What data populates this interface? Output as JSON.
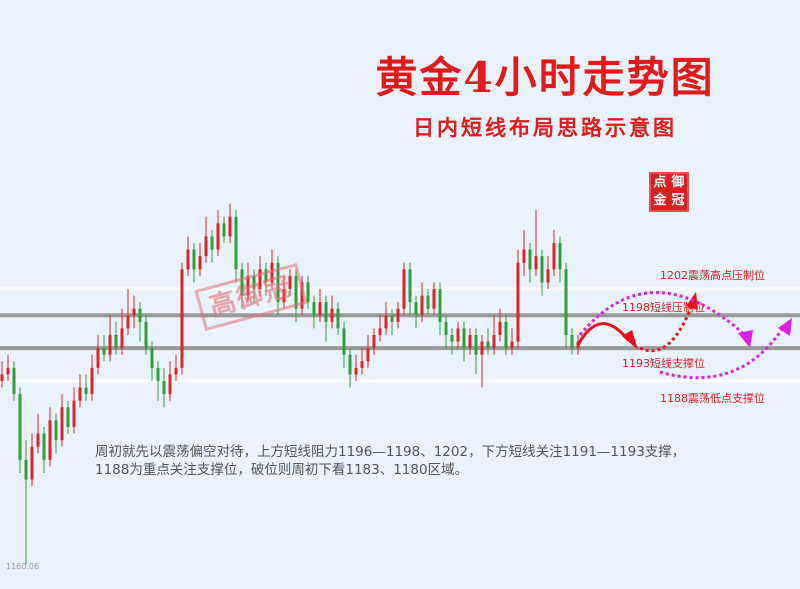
{
  "title": "黄金4小时走势图",
  "subtitle": "日内短线布局思路示意图",
  "seal_text": [
    "点",
    "御",
    "金",
    "冠"
  ],
  "watermark": "高御冠",
  "colors": {
    "background": "#eaf3fb",
    "up": "#d9262a",
    "down": "#2e9e3a",
    "title": "#e01b1b",
    "arrow_red": "#e8101c",
    "arrow_magenta": "#e020e0",
    "level_gray": "#999999",
    "level_white": "#ffffff"
  },
  "annotations": {
    "level_1202": "1202震荡高点压制位",
    "level_1198": "1198短线压制位",
    "level_1193": "1193短线支撑位",
    "level_1188": "1188震荡低点支撑位"
  },
  "note_lines": [
    "周初就先以震荡偏空对待，上方短线阻力1196—1198、1202，下方短线关注1191—1193支撑，",
    "1188为重点关注支撑位，破位则周初下看1183、1180区域。"
  ],
  "chart_data": {
    "type": "candlestick",
    "title": "黄金4小时走势图",
    "low_label": "1160.06",
    "levels": [
      {
        "price": 1202,
        "style": "white",
        "label": "1202震荡高点压制位"
      },
      {
        "price": 1198,
        "style": "gray",
        "label": "1198短线压制位"
      },
      {
        "price": 1193,
        "style": "gray",
        "label": "1193短线支撑位"
      },
      {
        "price": 1188,
        "style": "white",
        "label": "1188震荡低点支撑位"
      }
    ],
    "candles": [
      [
        1188,
        1191,
        1187,
        1189
      ],
      [
        1189,
        1192,
        1188,
        1190
      ],
      [
        1190,
        1191,
        1185,
        1186
      ],
      [
        1186,
        1187,
        1174,
        1176
      ],
      [
        1176,
        1179,
        1160.06,
        1173
      ],
      [
        1173,
        1180,
        1172,
        1178
      ],
      [
        1178,
        1183,
        1177,
        1180
      ],
      [
        1180,
        1181,
        1174,
        1176
      ],
      [
        1176,
        1184,
        1175,
        1182
      ],
      [
        1182,
        1183,
        1177,
        1179
      ],
      [
        1179,
        1186,
        1178,
        1184
      ],
      [
        1184,
        1185,
        1180,
        1181
      ],
      [
        1181,
        1187,
        1180,
        1185
      ],
      [
        1185,
        1189,
        1184,
        1187
      ],
      [
        1187,
        1189,
        1185,
        1186
      ],
      [
        1186,
        1192,
        1185,
        1190
      ],
      [
        1190,
        1195,
        1189,
        1193
      ],
      [
        1193,
        1195,
        1191,
        1192
      ],
      [
        1192,
        1198,
        1191,
        1195
      ],
      [
        1195,
        1197,
        1192,
        1193
      ],
      [
        1193,
        1199,
        1192,
        1196
      ],
      [
        1196,
        1202,
        1195,
        1198
      ],
      [
        1198,
        1201,
        1196,
        1199
      ],
      [
        1199,
        1200,
        1194,
        1197
      ],
      [
        1197,
        1198,
        1192,
        1193
      ],
      [
        1193,
        1194,
        1188,
        1190
      ],
      [
        1190,
        1191,
        1185,
        1188
      ],
      [
        1188,
        1190,
        1184,
        1186
      ],
      [
        1186,
        1191,
        1185,
        1189
      ],
      [
        1189,
        1192,
        1188,
        1190
      ],
      [
        1190,
        1206,
        1189,
        1205
      ],
      [
        1205,
        1210,
        1204,
        1208
      ],
      [
        1208,
        1209,
        1203,
        1205
      ],
      [
        1205,
        1209,
        1204,
        1207
      ],
      [
        1207,
        1213,
        1206,
        1210
      ],
      [
        1210,
        1211,
        1206,
        1208
      ],
      [
        1208,
        1214,
        1207,
        1212
      ],
      [
        1212,
        1213,
        1209,
        1210
      ],
      [
        1210,
        1215,
        1209,
        1213
      ],
      [
        1213,
        1214,
        1203,
        1205
      ],
      [
        1205,
        1206,
        1199,
        1201
      ],
      [
        1201,
        1206,
        1200,
        1204
      ],
      [
        1204,
        1205,
        1200,
        1202
      ],
      [
        1202,
        1207,
        1201,
        1205
      ],
      [
        1205,
        1206,
        1201,
        1203
      ],
      [
        1203,
        1208,
        1202,
        1206
      ],
      [
        1206,
        1207,
        1198,
        1200
      ],
      [
        1200,
        1204,
        1199,
        1202
      ],
      [
        1202,
        1205,
        1201,
        1204
      ],
      [
        1204,
        1205,
        1197,
        1199
      ],
      [
        1199,
        1204,
        1198,
        1203
      ],
      [
        1203,
        1204,
        1199,
        1200
      ],
      [
        1200,
        1201,
        1196,
        1198
      ],
      [
        1198,
        1202,
        1197,
        1200
      ],
      [
        1200,
        1201,
        1194,
        1197
      ],
      [
        1197,
        1201,
        1196,
        1199
      ],
      [
        1199,
        1200,
        1195,
        1196
      ],
      [
        1196,
        1197,
        1190,
        1192
      ],
      [
        1192,
        1193,
        1187,
        1189
      ],
      [
        1189,
        1192,
        1188,
        1190
      ],
      [
        1190,
        1193,
        1189,
        1191
      ],
      [
        1191,
        1195,
        1190,
        1193
      ],
      [
        1193,
        1196,
        1192,
        1195
      ],
      [
        1195,
        1198,
        1194,
        1196
      ],
      [
        1196,
        1200,
        1195,
        1198
      ],
      [
        1198,
        1199,
        1195,
        1197
      ],
      [
        1197,
        1200,
        1196,
        1199
      ],
      [
        1199,
        1206,
        1198,
        1205
      ],
      [
        1205,
        1206,
        1198,
        1200
      ],
      [
        1200,
        1201,
        1196,
        1198
      ],
      [
        1198,
        1203,
        1197,
        1201
      ],
      [
        1201,
        1202,
        1198,
        1199
      ],
      [
        1199,
        1203,
        1198,
        1202
      ],
      [
        1202,
        1203,
        1195,
        1197
      ],
      [
        1197,
        1198,
        1193,
        1195
      ],
      [
        1195,
        1196,
        1192,
        1194
      ],
      [
        1194,
        1197,
        1193,
        1196
      ],
      [
        1196,
        1197,
        1191,
        1193
      ],
      [
        1193,
        1196,
        1192,
        1195
      ],
      [
        1195,
        1196,
        1189,
        1192
      ],
      [
        1192,
        1195,
        1187,
        1194
      ],
      [
        1194,
        1196,
        1192,
        1193
      ],
      [
        1193,
        1198,
        1192,
        1195
      ],
      [
        1195,
        1199,
        1194,
        1197
      ],
      [
        1197,
        1198,
        1192,
        1193
      ],
      [
        1193,
        1196,
        1192,
        1194
      ],
      [
        1194,
        1208,
        1193,
        1206
      ],
      [
        1206,
        1211,
        1204,
        1208
      ],
      [
        1208,
        1209,
        1203,
        1205
      ],
      [
        1205,
        1214,
        1204,
        1207
      ],
      [
        1207,
        1208,
        1201,
        1203
      ],
      [
        1203,
        1207,
        1202,
        1205
      ],
      [
        1205,
        1211,
        1204,
        1209
      ],
      [
        1209,
        1210,
        1203,
        1205
      ],
      [
        1205,
        1206,
        1193,
        1195
      ],
      [
        1195,
        1196,
        1192,
        1193
      ],
      [
        1193,
        1195,
        1192,
        1194
      ]
    ]
  }
}
